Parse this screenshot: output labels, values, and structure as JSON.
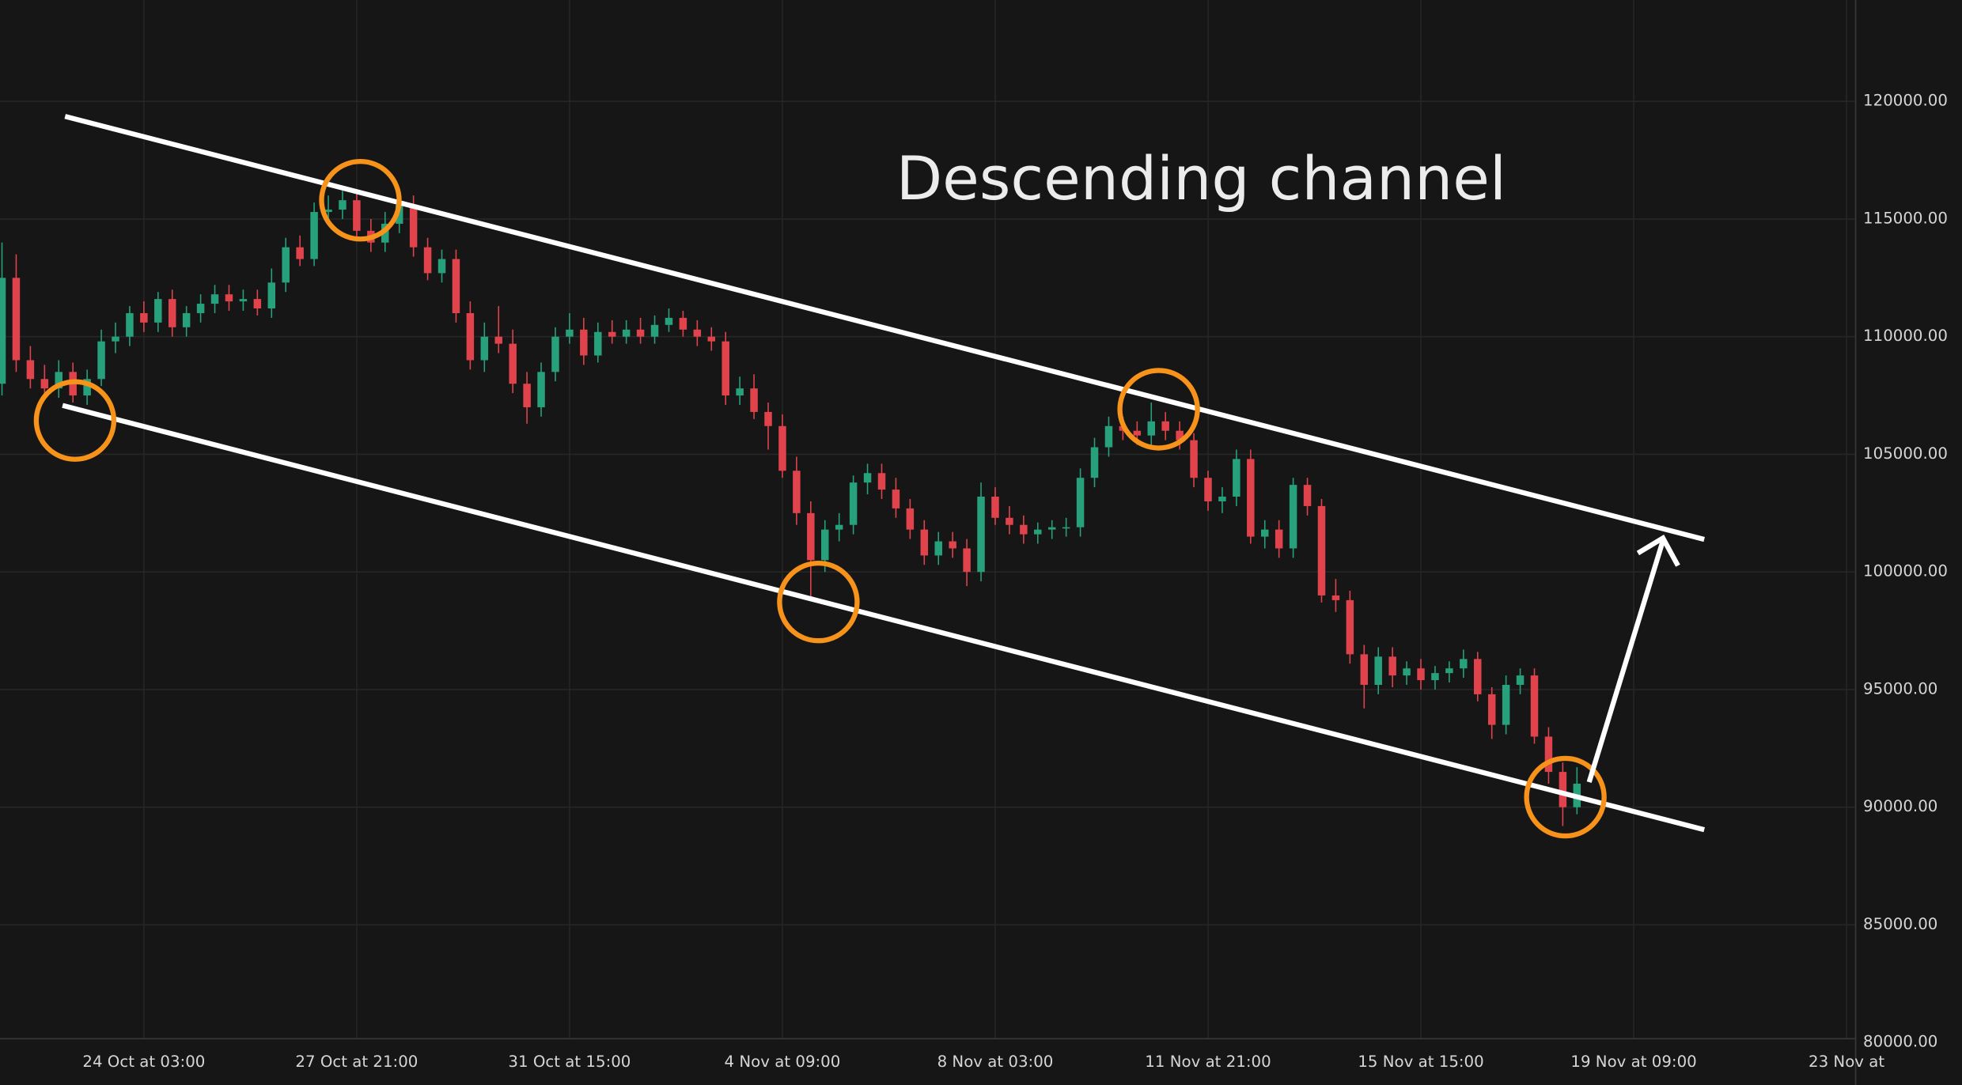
{
  "chart_data": {
    "type": "candlestick",
    "annotation": "Descending channel",
    "up_color": "#26a17b",
    "down_color": "#e0434b",
    "grid": true,
    "x": [
      0,
      1,
      2,
      3,
      4,
      5,
      6,
      7,
      8,
      9,
      10,
      11,
      12,
      13,
      14,
      15,
      16,
      17,
      18,
      19,
      20,
      21,
      22,
      23,
      24,
      25,
      26,
      27,
      28,
      29,
      30,
      31,
      32,
      33,
      34,
      35,
      36,
      37,
      38,
      39,
      40,
      41,
      42,
      43,
      44,
      45,
      46,
      47,
      48,
      49,
      50,
      51,
      52,
      53,
      54,
      55,
      56,
      57,
      58,
      59,
      60,
      61,
      62,
      63,
      64,
      65,
      66,
      67,
      68,
      69,
      70,
      71,
      72,
      73,
      74,
      75,
      76,
      77,
      78,
      79,
      80,
      81,
      82,
      83,
      84,
      85,
      86,
      87,
      88,
      89,
      90,
      91,
      92,
      93,
      94,
      95,
      96,
      97,
      98,
      99,
      100,
      101,
      102,
      103,
      104,
      105,
      106,
      107,
      108,
      109,
      110,
      111
    ],
    "open": [
      108000,
      112500,
      109000,
      108200,
      107800,
      108500,
      107500,
      108200,
      109800,
      110000,
      111000,
      110600,
      111600,
      110400,
      111000,
      111400,
      111800,
      111500,
      111600,
      111200,
      112300,
      113800,
      113300,
      115300,
      115400,
      115800,
      114500,
      114000,
      114800,
      115600,
      113800,
      112700,
      113300,
      111000,
      109000,
      110000,
      109700,
      108000,
      107000,
      108500,
      110000,
      110300,
      109200,
      110200,
      110000,
      110300,
      110000,
      110500,
      110800,
      110300,
      110000,
      109800,
      107500,
      107800,
      106800,
      106200,
      104300,
      102500,
      100500,
      101800,
      102000,
      103800,
      104200,
      103500,
      102700,
      101800,
      100700,
      101300,
      101000,
      100000,
      103200,
      102300,
      102000,
      101600,
      101800,
      101900,
      101900,
      104000,
      105300,
      106200,
      106000,
      105800,
      106400,
      106000,
      105600,
      104000,
      103000,
      103200,
      104800,
      101500,
      101800,
      101000,
      103700,
      102800,
      99000,
      98800,
      96500,
      95200,
      96400,
      95600,
      95900,
      95400,
      95700,
      95900,
      96300,
      94800,
      93500,
      95200,
      95600,
      93000,
      91500,
      90000
    ],
    "high": [
      114000,
      113500,
      109600,
      108800,
      109000,
      108900,
      108600,
      110300,
      110600,
      111300,
      111500,
      111900,
      112000,
      111300,
      111800,
      112200,
      112200,
      112000,
      112000,
      112900,
      114200,
      114300,
      115700,
      116000,
      116200,
      116100,
      115000,
      115300,
      116000,
      116000,
      114200,
      113700,
      113700,
      111500,
      110600,
      111300,
      110300,
      108500,
      108900,
      110400,
      111000,
      110800,
      110600,
      110700,
      110700,
      110800,
      110900,
      111200,
      111100,
      110700,
      110400,
      110200,
      108300,
      108400,
      107200,
      106700,
      104900,
      103000,
      102200,
      102500,
      104100,
      104600,
      104600,
      104000,
      103100,
      102200,
      101700,
      101700,
      101400,
      103800,
      103600,
      102800,
      102400,
      102100,
      102200,
      102300,
      104400,
      105700,
      106600,
      106600,
      106400,
      107200,
      106800,
      106400,
      105900,
      104300,
      103600,
      105200,
      105200,
      102200,
      102200,
      104000,
      104000,
      103100,
      99700,
      99200,
      96900,
      96800,
      96800,
      96200,
      96300,
      96000,
      96200,
      96700,
      96600,
      95100,
      95600,
      95900,
      95900,
      93400,
      91900,
      91700
    ],
    "low": [
      107500,
      108500,
      107800,
      107300,
      107400,
      107200,
      107100,
      107900,
      109300,
      109600,
      110200,
      110200,
      110000,
      110000,
      110600,
      111000,
      111100,
      111100,
      110900,
      110800,
      111900,
      113000,
      113000,
      114900,
      115000,
      114100,
      113600,
      113600,
      114400,
      113400,
      112400,
      112300,
      110600,
      108600,
      108500,
      109300,
      107600,
      106300,
      106600,
      108100,
      109700,
      108800,
      108900,
      109700,
      109700,
      109700,
      109700,
      110200,
      110000,
      109600,
      109400,
      107100,
      107100,
      106500,
      105200,
      104000,
      102000,
      98800,
      100000,
      101300,
      101600,
      103300,
      103100,
      102300,
      101400,
      100300,
      100300,
      100600,
      99400,
      99600,
      102000,
      101600,
      101200,
      101200,
      101400,
      101500,
      101500,
      103600,
      104900,
      105600,
      105400,
      105400,
      105600,
      105200,
      103600,
      102600,
      102500,
      102800,
      101200,
      101000,
      100600,
      100600,
      102400,
      98700,
      98300,
      96100,
      94200,
      94800,
      95100,
      95200,
      95000,
      95000,
      95300,
      95500,
      94500,
      92900,
      93100,
      94800,
      92700,
      91000,
      89200,
      89700
    ],
    "close": [
      112500,
      109000,
      108200,
      107800,
      108500,
      107500,
      108200,
      109800,
      110000,
      111000,
      110600,
      111600,
      110400,
      111000,
      111400,
      111800,
      111500,
      111600,
      111200,
      112300,
      113800,
      113300,
      115300,
      115400,
      115800,
      114500,
      114000,
      114800,
      115600,
      113800,
      112700,
      113300,
      111000,
      109000,
      110000,
      109700,
      108000,
      107000,
      108500,
      110000,
      110300,
      109200,
      110200,
      110000,
      110300,
      110000,
      110500,
      110800,
      110300,
      110000,
      109800,
      107500,
      107800,
      106800,
      106200,
      104300,
      102500,
      100500,
      101800,
      102000,
      103800,
      104200,
      103500,
      102700,
      101800,
      100700,
      101300,
      101000,
      100000,
      103200,
      102300,
      102000,
      101600,
      101800,
      101900,
      101900,
      104000,
      105300,
      106200,
      106000,
      105800,
      106400,
      106000,
      105600,
      104000,
      103000,
      103200,
      104800,
      101500,
      101800,
      101000,
      103700,
      102800,
      99000,
      98800,
      96500,
      95200,
      96400,
      95600,
      95900,
      95400,
      95700,
      95900,
      96300,
      94800,
      93500,
      95200,
      95600,
      93000,
      91500,
      90000,
      91000
    ],
    "xlim": [
      -0.14,
      130.64
    ],
    "xticks": [
      {
        "value": 10,
        "label": "24 Oct at 03:00"
      },
      {
        "value": 25,
        "label": "27 Oct at 21:00"
      },
      {
        "value": 40,
        "label": "31 Oct at 15:00"
      },
      {
        "value": 55,
        "label": "4 Nov at 09:00"
      },
      {
        "value": 70,
        "label": "8 Nov at 03:00"
      },
      {
        "value": 85,
        "label": "11 Nov at 21:00"
      },
      {
        "value": 100,
        "label": "15 Nov at 15:00"
      },
      {
        "value": 115,
        "label": "19 Nov at 09:00"
      },
      {
        "value": 130,
        "label": "23 Nov at"
      }
    ],
    "ylim": [
      80160,
      124310
    ],
    "yticks": [
      {
        "value": 80000,
        "label": "80000.00"
      },
      {
        "value": 85000,
        "label": "85000.00"
      },
      {
        "value": 90000,
        "label": "90000.00"
      },
      {
        "value": 95000,
        "label": "95000.00"
      },
      {
        "value": 100000,
        "label": "100000.00"
      },
      {
        "value": 105000,
        "label": "105000.00"
      },
      {
        "value": 110000,
        "label": "110000.00"
      },
      {
        "value": 115000,
        "label": "115000.00"
      },
      {
        "value": 120000,
        "label": "120000.00"
      }
    ]
  }
}
